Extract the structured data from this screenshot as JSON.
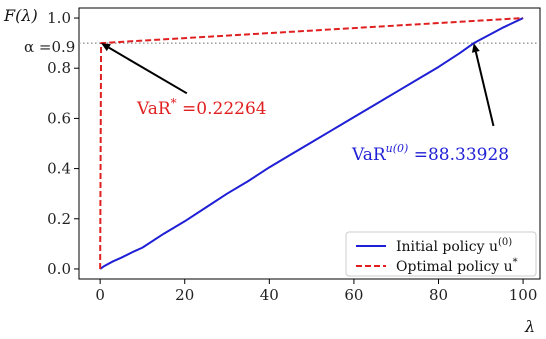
{
  "chart_data": {
    "type": "line",
    "title": "",
    "xlabel": "λ",
    "ylabel": "F(λ)",
    "xlim": [
      -5,
      104
    ],
    "ylim": [
      -0.04,
      1.04
    ],
    "x_ticks": [
      0,
      20,
      40,
      60,
      80,
      100
    ],
    "x_tick_labels": [
      "0",
      "20",
      "40",
      "60",
      "80",
      "100"
    ],
    "y_ticks": [
      0.0,
      0.2,
      0.4,
      0.6,
      0.8,
      1.0
    ],
    "y_tick_labels": [
      "0.0",
      "0.2",
      "0.4",
      "0.6",
      "0.8",
      "1.0"
    ],
    "alpha_line": {
      "value": 0.9,
      "label": "α =0.9",
      "color": "#888888",
      "style": "dotted"
    },
    "legend_position": "lower-right",
    "grid": false,
    "series": [
      {
        "name": "Initial policy u⁽⁰⁾",
        "color": "#1f1fd6",
        "style": "solid",
        "points": [
          [
            0,
            0.0
          ],
          [
            1,
            0.012
          ],
          [
            3,
            0.03
          ],
          [
            5,
            0.045
          ],
          [
            8,
            0.07
          ],
          [
            10,
            0.085
          ],
          [
            15,
            0.14
          ],
          [
            20,
            0.19
          ],
          [
            25,
            0.245
          ],
          [
            30,
            0.3
          ],
          [
            35,
            0.35
          ],
          [
            40,
            0.405
          ],
          [
            45,
            0.455
          ],
          [
            50,
            0.505
          ],
          [
            55,
            0.555
          ],
          [
            60,
            0.605
          ],
          [
            65,
            0.655
          ],
          [
            70,
            0.705
          ],
          [
            75,
            0.755
          ],
          [
            80,
            0.805
          ],
          [
            85,
            0.86
          ],
          [
            88.34,
            0.9
          ],
          [
            90,
            0.915
          ],
          [
            95,
            0.96
          ],
          [
            100,
            1.0
          ]
        ]
      },
      {
        "name": "Optimal policy u*",
        "color": "#e02020",
        "style": "dashed",
        "points": [
          [
            0,
            0.0
          ],
          [
            0.22,
            0.9
          ],
          [
            5,
            0.905
          ],
          [
            10,
            0.91
          ],
          [
            20,
            0.92
          ],
          [
            30,
            0.93
          ],
          [
            40,
            0.94
          ],
          [
            50,
            0.95
          ],
          [
            60,
            0.96
          ],
          [
            70,
            0.97
          ],
          [
            80,
            0.98
          ],
          [
            90,
            0.99
          ],
          [
            100,
            1.0
          ]
        ]
      }
    ],
    "annotations": [
      {
        "text": "VaR* =0.22264",
        "color": "#e02020",
        "arrow_from": [
          20.5,
          0.7
        ],
        "arrow_to": [
          0.22264,
          0.9
        ]
      },
      {
        "text": "VaR^u(0) =88.33928",
        "color": "#1f1fd6",
        "arrow_from": [
          93,
          0.57
        ],
        "arrow_to": [
          88.33928,
          0.9
        ]
      }
    ]
  },
  "labels": {
    "ylabel": "F(λ)",
    "xlabel": "λ",
    "alpha_label": "α =0.9",
    "annot_var_star_prefix": "VaR",
    "annot_var_star_sup": "*",
    "annot_var_star_value": " =0.22264",
    "annot_var_u0_prefix": "VaR",
    "annot_var_u0_sup": "u(0)",
    "annot_var_u0_value": " =88.33928",
    "legend_initial": "Initial policy u",
    "legend_initial_sup": "(0)",
    "legend_optimal": "Optimal policy u",
    "legend_optimal_sup": "*"
  }
}
